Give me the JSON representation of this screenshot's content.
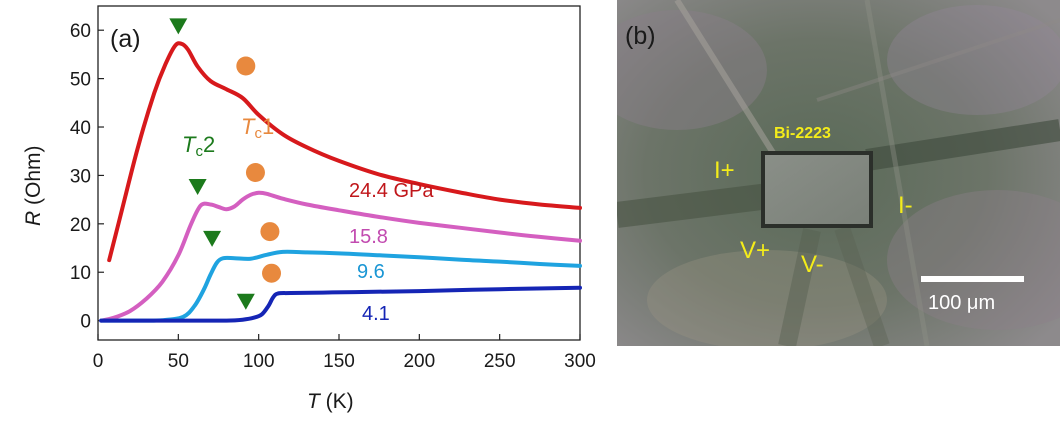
{
  "chart_data": {
    "type": "line",
    "panel_label": "(a)",
    "xlabel_var": "T",
    "xlabel_unit": " (K)",
    "ylabel_var": "R",
    "ylabel_unit": " (Ohm)",
    "xlim": [
      0,
      300
    ],
    "ylim": [
      -4,
      65
    ],
    "xticks": [
      0,
      50,
      100,
      150,
      200,
      250,
      300
    ],
    "yticks": [
      0,
      10,
      20,
      30,
      40,
      50,
      60
    ],
    "grid": false,
    "legend": "none",
    "series": [
      {
        "name": "24.4 GPa",
        "color": "#d7191c",
        "x": [
          7,
          15,
          25,
          35,
          42,
          48,
          52,
          56,
          62,
          70,
          80,
          90,
          100,
          115,
          130,
          150,
          175,
          200,
          225,
          250,
          275,
          300
        ],
        "y": [
          12.5,
          23,
          36,
          47,
          53,
          56.8,
          57.2,
          56,
          52.5,
          49.5,
          47.8,
          46,
          42.5,
          38.5,
          35.8,
          33,
          30.2,
          28.2,
          26.5,
          25,
          24,
          23.3
        ]
      },
      {
        "name": "15.8",
        "color": "#d45fc0",
        "x": [
          2,
          10,
          20,
          30,
          40,
          50,
          58,
          64,
          70,
          75,
          80,
          85,
          90,
          95,
          100,
          105,
          115,
          130,
          150,
          175,
          200,
          225,
          250,
          275,
          300
        ],
        "y": [
          0,
          0.6,
          2,
          4.5,
          8,
          13.5,
          20,
          23.8,
          24,
          23.5,
          23,
          23.6,
          25,
          26,
          26.4,
          26.2,
          25.2,
          24,
          22.8,
          21.4,
          20.2,
          19.2,
          18.2,
          17.3,
          16.5
        ]
      },
      {
        "name": "9.6",
        "color": "#1fa3e0",
        "x": [
          2,
          20,
          40,
          53,
          60,
          66,
          70,
          74,
          78,
          85,
          95,
          105,
          115,
          130,
          150,
          175,
          200,
          225,
          250,
          275,
          300
        ],
        "y": [
          0,
          0,
          0.1,
          0.8,
          3,
          6.5,
          9.5,
          12,
          12.9,
          12.9,
          12.8,
          13.6,
          14.2,
          14.1,
          13.9,
          13.5,
          13.1,
          12.6,
          12.2,
          11.7,
          11.3
        ]
      },
      {
        "name": "4.1",
        "color": "#1525b5",
        "x": [
          2,
          30,
          60,
          80,
          90,
          97,
          102,
          106,
          109,
          112,
          120,
          140,
          160,
          200,
          250,
          300
        ],
        "y": [
          0,
          0,
          0,
          0,
          0.2,
          0.6,
          1.3,
          3,
          4.8,
          5.6,
          5.7,
          5.8,
          5.9,
          6.1,
          6.5,
          6.8
        ]
      }
    ],
    "annotations": {
      "tc2_label_main": "T",
      "tc2_label_sub": "c",
      "tc2_label_tail": "2",
      "tc1_label_main": "T",
      "tc1_label_sub": "c",
      "tc1_label_tail": "1",
      "tc2_color": "#1c7a1c",
      "tc1_color": "#e8893e",
      "tc2_markers": [
        {
          "x": 50,
          "y": 60.8
        },
        {
          "x": 62,
          "y": 27.6
        },
        {
          "x": 71,
          "y": 16.9
        },
        {
          "x": 92,
          "y": 3.9
        }
      ],
      "tc1_markers": [
        {
          "x": 92,
          "y": 52.6
        },
        {
          "x": 98,
          "y": 30.6
        },
        {
          "x": 107,
          "y": 18.4
        },
        {
          "x": 108,
          "y": 9.8
        }
      ]
    }
  },
  "photo": {
    "panel_label": "(b)",
    "sample_label": "Bi-2223",
    "terminals": {
      "i_plus": "I+",
      "i_minus": "I-",
      "v_plus": "V+",
      "v_minus": "V-"
    },
    "scale_bar_label": "100 μm"
  }
}
